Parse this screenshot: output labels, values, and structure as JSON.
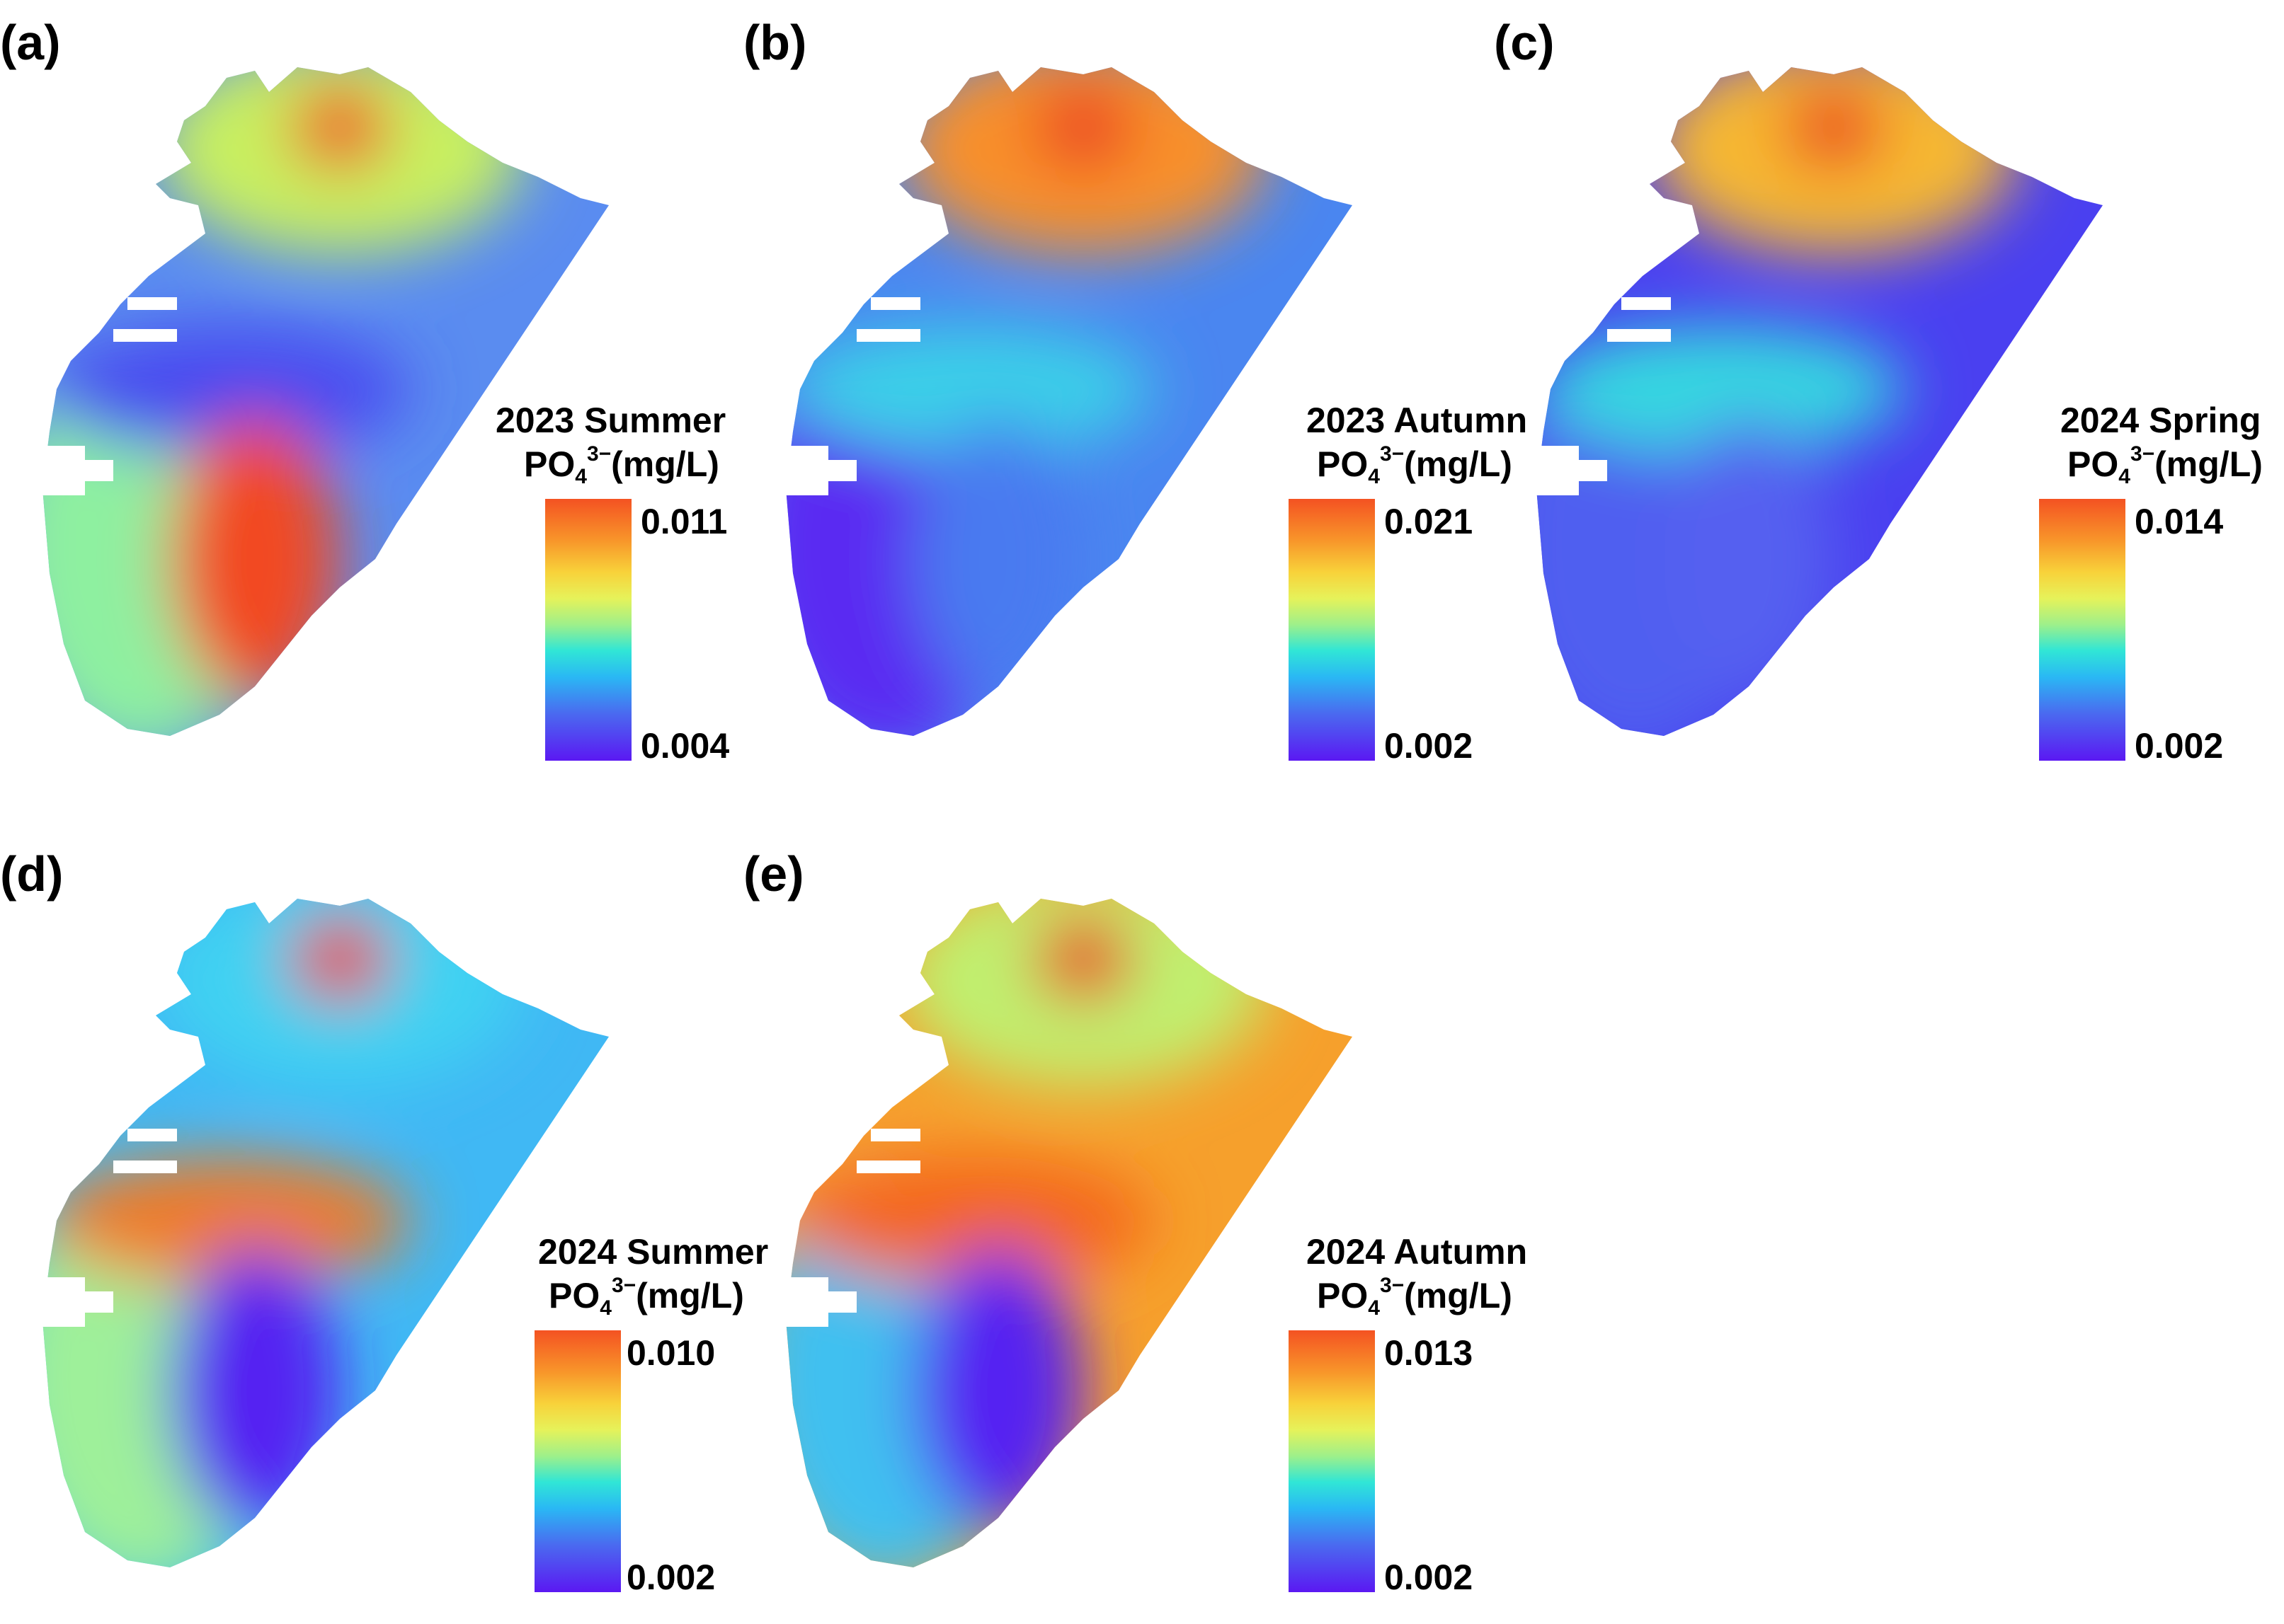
{
  "panels": [
    {
      "label": "(a)",
      "season": "2023 Summer",
      "unit_main": "PO",
      "unit_sub": "4",
      "unit_sup": "3−",
      "unit_tail": "(mg/L)",
      "max": "0.011",
      "min": "0.004",
      "colors": {
        "north_lobe": "#c8f060",
        "north_hot": "#f04020",
        "middle_band": "#4a4cf0",
        "south_hot": "#f24a22",
        "shore": "#8ef0a0",
        "east": "#5a8cf0"
      }
    },
    {
      "label": "(b)",
      "season": "2023 Autumn",
      "unit_main": "PO",
      "unit_sub": "4",
      "unit_sup": "3−",
      "unit_tail": "(mg/L)",
      "max": "0.021",
      "min": "0.002",
      "colors": {
        "north_lobe": "#f8902a",
        "north_hot": "#ec3a20",
        "middle_band": "#3ad0e8",
        "south_hot": "#4a7af0",
        "shore": "#5a2cf2",
        "east": "#4a86f0"
      }
    },
    {
      "label": "(c)",
      "season": "2024 Spring",
      "unit_main": "PO",
      "unit_sub": "4",
      "unit_sup": "3−",
      "unit_tail": "(mg/L)",
      "max": "0.014",
      "min": "0.002",
      "colors": {
        "north_lobe": "#f6b830",
        "north_hot": "#ec3a20",
        "middle_band": "#36d8e0",
        "south_hot": "#5560f0",
        "shore": "#4f5ef0",
        "east": "#4a40f0"
      }
    },
    {
      "label": "(d)",
      "season": "2024 Summer",
      "unit_main": "PO",
      "unit_sub": "4",
      "unit_sup": "3−",
      "unit_tail": "(mg/L)",
      "max": "0.010",
      "min": "0.002",
      "colors": {
        "north_lobe": "#40d2f2",
        "north_hot": "#e8281c",
        "middle_band": "#f07a26",
        "south_hot": "#5424f2",
        "shore": "#9ef09a",
        "east": "#40b8f4"
      }
    },
    {
      "label": "(e)",
      "season": "2024 Autumn",
      "unit_main": "PO",
      "unit_sub": "4",
      "unit_sup": "3−",
      "unit_tail": "(mg/L)",
      "max": "0.013",
      "min": "0.002",
      "colors": {
        "north_lobe": "#c0f070",
        "north_hot": "#e8281c",
        "middle_band": "#f4661e",
        "south_hot": "#5424f2",
        "shore": "#40c0f0",
        "east": "#f6a02c"
      }
    }
  ]
}
